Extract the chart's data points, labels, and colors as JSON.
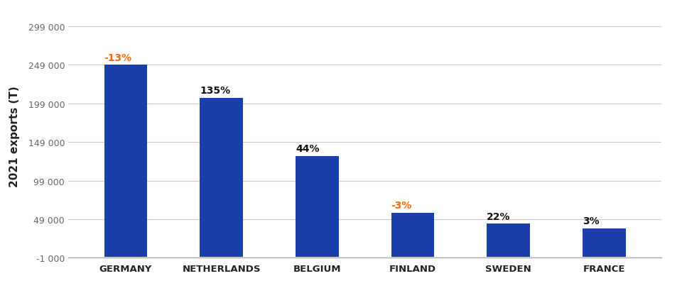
{
  "categories": [
    "GERMANY",
    "NETHERLANDS",
    "BELGIUM",
    "FINLAND",
    "SWEDEN",
    "FRANCE"
  ],
  "values": [
    249000,
    206000,
    131000,
    57000,
    43000,
    37000
  ],
  "bar_color": "#1a3faa",
  "labels": [
    "-13%",
    "135%",
    "44%",
    "-3%",
    "22%",
    "3%"
  ],
  "label_colors": [
    "#ff6600",
    "#111111",
    "#111111",
    "#ff6600",
    "#111111",
    "#111111"
  ],
  "ylabel": "2021 exports (T)",
  "ylim": [
    -1000,
    315000
  ],
  "yticks": [
    -1000,
    49000,
    99000,
    149000,
    199000,
    249000,
    299000
  ],
  "ytick_labels": [
    "-1 000",
    "49 000",
    "99 000",
    "149 000",
    "199 000",
    "249 000",
    "299 000"
  ],
  "background_color": "#ffffff",
  "grid_color": "#cccccc",
  "label_fontsize": 10,
  "ylabel_fontsize": 11,
  "xtick_fontsize": 9.5,
  "ytick_fontsize": 9,
  "bar_width": 0.45
}
